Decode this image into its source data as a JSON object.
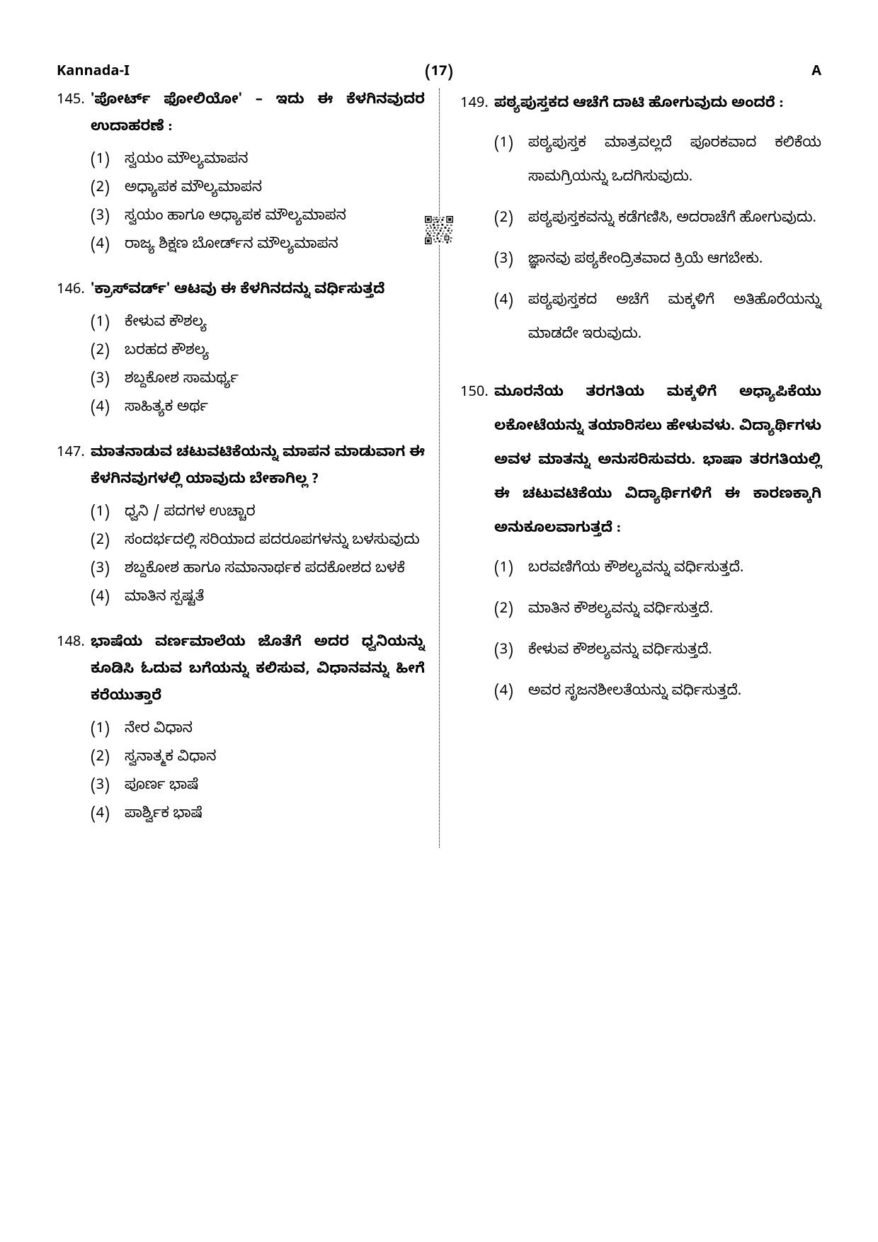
{
  "header": {
    "left": "Kannada-I",
    "center": "(17)",
    "right": "A"
  },
  "questions_left": [
    {
      "num": "145.",
      "text": "'ಪೋರ್ಟ್‌ ಫೋಲಿಯೋ' – ಇದು ಈ ಕೆಳಗಿನವುದರ ಉದಾಹರಣೆ :",
      "options": [
        {
          "num": "(1)",
          "text": "ಸ್ವಯಂ ಮೌಲ್ಯಮಾಪನ"
        },
        {
          "num": "(2)",
          "text": "ಅಧ್ಯಾಪಕ ಮೌಲ್ಯಮಾಪನ"
        },
        {
          "num": "(3)",
          "text": "ಸ್ವಯಂ ಹಾಗೂ ಅಧ್ಯಾಪಕ ಮೌಲ್ಯಮಾಪನ"
        },
        {
          "num": "(4)",
          "text": "ರಾಜ್ಯ ಶಿಕ್ಷಣ ಬೋರ್ಡ್‌ನ ಮೌಲ್ಯಮಾಪನ"
        }
      ]
    },
    {
      "num": "146.",
      "text": "'ಕ್ರಾಸ್‌ವರ್ಡ್' ಆಟವು ಈ ಕೆಳಗಿನದನ್ನು ವರ್ಧಿಸುತ್ತದೆ",
      "options": [
        {
          "num": "(1)",
          "text": "ಕೇಳುವ ಕೌಶಲ್ಯ"
        },
        {
          "num": "(2)",
          "text": "ಬರಹದ ಕೌಶಲ್ಯ"
        },
        {
          "num": "(3)",
          "text": "ಶಬ್ದಕೋಶ ಸಾಮರ್ಥ್ಯ"
        },
        {
          "num": "(4)",
          "text": "ಸಾಹಿತ್ಯಕ ಅರ್ಥ"
        }
      ]
    },
    {
      "num": "147.",
      "text": "ಮಾತನಾಡುವ ಚಟುವಟಿಕೆಯನ್ನು ಮಾಪನ ಮಾಡುವಾಗ ಈ ಕೆಳಗಿನವುಗಳಲ್ಲಿ ಯಾವುದು ಬೇಕಾಗಿಲ್ಲ ?",
      "options": [
        {
          "num": "(1)",
          "text": "ಧ್ವನಿ / ಪದಗಳ ಉಚ್ಚಾರ"
        },
        {
          "num": "(2)",
          "text": "ಸಂದರ್ಭದಲ್ಲಿ ಸರಿಯಾದ ಪದರೂಪಗಳನ್ನು ಬಳಸುವುದು"
        },
        {
          "num": "(3)",
          "text": "ಶಬ್ದಕೋಶ ಹಾಗೂ ಸಮಾನಾರ್ಥಕ ಪದಕೋಶದ ಬಳಕೆ"
        },
        {
          "num": "(4)",
          "text": "ಮಾತಿನ ಸ್ಪಷ್ಟತೆ"
        }
      ]
    },
    {
      "num": "148.",
      "text": "ಭಾಷೆಯ ವರ್ಣಮಾಲೆಯ ಜೊತೆಗೆ ಅದರ ಧ್ವನಿಯನ್ನು ಕೂಡಿಸಿ ಓದುವ ಬಗೆಯನ್ನು ಕಲಿಸುವ, ವಿಧಾನವನ್ನು ಹೀಗೆ ಕರೆಯುತ್ತಾರೆ",
      "options": [
        {
          "num": "(1)",
          "text": "ನೇರ ವಿಧಾನ"
        },
        {
          "num": "(2)",
          "text": "ಸ್ವನಾತ್ಮಕ ವಿಧಾನ"
        },
        {
          "num": "(3)",
          "text": "ಪೂರ್ಣ ಭಾಷೆ"
        },
        {
          "num": "(4)",
          "text": "ಪಾರ್ಶ್ವಿಕ ಭಾಷೆ"
        }
      ]
    }
  ],
  "questions_right": [
    {
      "num": "149.",
      "text": "ಪಠ್ಯಪುಸ್ತಕದ ಆಚೆಗೆ ದಾಟಿ ಹೋಗುವುದು ಅಂದರೆ :",
      "spaced": true,
      "options": [
        {
          "num": "(1)",
          "text": "ಪಠ್ಯಪುಸ್ತಕ ಮಾತ್ರವಲ್ಲದೆ ಪೂರಕವಾದ ಕಲಿಕೆಯ ಸಾಮಗ್ರಿಯನ್ನು ಒದಗಿಸುವುದು."
        },
        {
          "num": "(2)",
          "text": "ಪಠ್ಯಪುಸ್ತಕವನ್ನು ಕಡೆಗಣಿಸಿ, ಅದರಾಚೆಗೆ ಹೋಗುವುದು."
        },
        {
          "num": "(3)",
          "text": "ಜ್ಞಾನವು ಪಠ್ಯಕೇಂದ್ರಿತವಾದ ಕ್ರಿಯೆ ಆಗಬೇಕು."
        },
        {
          "num": "(4)",
          "text": "ಪಠ್ಯಪುಸ್ತಕದ ಅಚೆಗೆ ಮಕ್ಕಳಿಗೆ ಅತಿಹೊರೆಯನ್ನು ಮಾಡದೇ ಇರುವುದು."
        }
      ]
    },
    {
      "num": "150.",
      "text": "ಮೂರನೆಯ ತರಗತಿಯ ಮಕ್ಕಳಿಗೆ ಅಧ್ಯಾಪಿಕೆಯು ಲಕೋಟೆಯನ್ನು ತಯಾರಿಸಲು ಹೇಳುವಳು. ವಿದ್ಯಾರ್ಥಿಗಳು ಅವಳ ಮಾತನ್ನು ಅನುಸರಿಸುವರು. ಭಾಷಾ ತರಗತಿಯಲ್ಲಿ ಈ ಚಟುವಟಿಕೆಯು ವಿದ್ಯಾರ್ಥಿಗಳಿಗೆ ಈ ಕಾರಣಕ್ಕಾಗಿ ಅನುಕೂಲವಾಗುತ್ತದೆ :",
      "spaced": true,
      "options": [
        {
          "num": "(1)",
          "text": "ಬರವಣಿಗೆಯ ಕೌಶಲ್ಯವನ್ನು ವರ್ಧಿಸುತ್ತದೆ."
        },
        {
          "num": "(2)",
          "text": "ಮಾತಿನ ಕೌಶಲ್ಯವನ್ನು ವರ್ಧಿಸುತ್ತದೆ."
        },
        {
          "num": "(3)",
          "text": "ಕೇಳುವ ಕೌಶಲ್ಯವನ್ನು ವರ್ಧಿಸುತ್ತದೆ."
        },
        {
          "num": "(4)",
          "text": "ಅವರ ಸೃಜನಶೀಲತೆಯನ್ನು ವರ್ಧಿಸುತ್ತದೆ."
        }
      ]
    }
  ]
}
